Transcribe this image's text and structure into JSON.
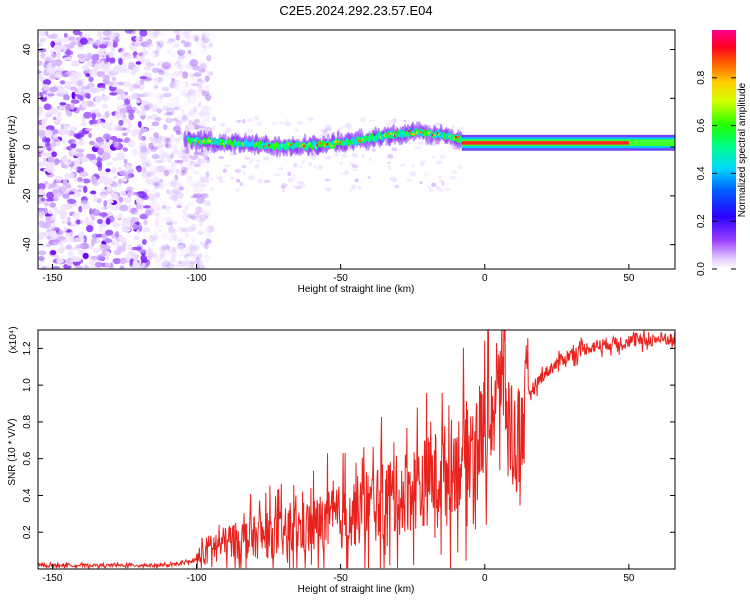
{
  "title": "C2E5.2024.292.23.57.E04",
  "chart_data": [
    {
      "type": "heatmap",
      "xlabel": "Height of straight line (km)",
      "ylabel": "Frequency (Hz)",
      "xlim": [
        -155,
        66
      ],
      "ylim": [
        -50,
        48
      ],
      "x_ticks": [
        -150,
        -100,
        -50,
        0,
        50
      ],
      "y_ticks": [
        -40,
        -20,
        0,
        20,
        40
      ],
      "colorbar": {
        "label": "Normalized spectral amplitude",
        "range": [
          0,
          1
        ],
        "ticks": [
          "0.0",
          "0.2",
          "0.4",
          "0.6",
          "0.8"
        ],
        "colormap": [
          "#ffffff",
          "#d9b8ff",
          "#7b00ff",
          "#0000ff",
          "#00c8ff",
          "#00ff40",
          "#ffff00",
          "#ff8000",
          "#ff0000",
          "#ff0090"
        ]
      },
      "ridge": {
        "x": [
          -103,
          -95,
          -85,
          -75,
          -65,
          -55,
          -45,
          -35,
          -25,
          -15,
          -8,
          0,
          10,
          20,
          30,
          40,
          50,
          60,
          66
        ],
        "y": [
          3,
          2,
          1.5,
          0.5,
          0.5,
          1,
          2.5,
          4.5,
          6,
          5,
          3,
          1.5,
          1.5,
          1.5,
          1.5,
          1.5,
          2,
          2.5,
          3
        ]
      },
      "noise_region_x": [
        -155,
        -103
      ]
    },
    {
      "type": "line",
      "xlabel": "Height of straight line (km)",
      "ylabel": "SNR (10 * V/V)",
      "y_multiplier": "(x10⁴)",
      "xlim": [
        -155,
        66
      ],
      "ylim": [
        0,
        1.3
      ],
      "x_ticks": [
        -150,
        -100,
        -50,
        0,
        50
      ],
      "y_ticks": [
        0.2,
        0.4,
        0.6,
        0.8,
        1.0,
        1.2
      ],
      "y_tick_labels": [
        "0.2",
        "0.4",
        "0.6",
        "0.8",
        "1.0",
        "1.2"
      ],
      "color": "#e8231e",
      "series": [
        {
          "x": [
            -155,
            -130,
            -110,
            -105,
            -100,
            -97,
            -95,
            -90,
            -85,
            -80,
            -75,
            -70,
            -65,
            -60,
            -55,
            -50,
            -45,
            -40,
            -35,
            -30,
            -25,
            -20,
            -15,
            -10,
            -5,
            0,
            3,
            5,
            6,
            8,
            10,
            12,
            15,
            20,
            25,
            30,
            35,
            40,
            45,
            50,
            55,
            60,
            66
          ],
          "y": [
            0.02,
            0.02,
            0.02,
            0.03,
            0.05,
            0.09,
            0.12,
            0.14,
            0.16,
            0.17,
            0.18,
            0.19,
            0.21,
            0.23,
            0.26,
            0.28,
            0.31,
            0.34,
            0.37,
            0.4,
            0.44,
            0.48,
            0.52,
            0.58,
            0.66,
            0.78,
            0.88,
            0.95,
            1.15,
            0.85,
            0.7,
            0.72,
            0.95,
            1.05,
            1.12,
            1.17,
            1.2,
            1.22,
            1.23,
            1.24,
            1.24,
            1.25,
            1.25
          ]
        }
      ]
    }
  ]
}
